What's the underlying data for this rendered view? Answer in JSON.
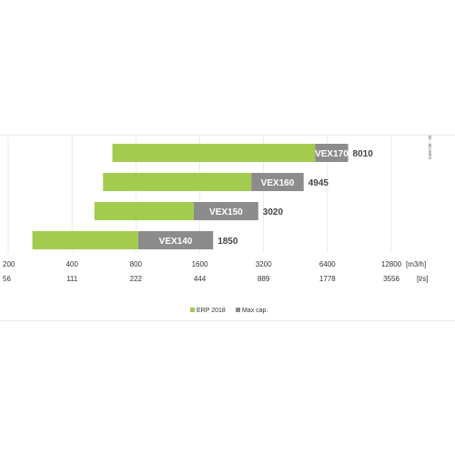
{
  "chart_data": {
    "type": "bar",
    "orientation": "horizontal",
    "scale": "log2",
    "categories": [
      "VEX170",
      "VEX160",
      "VEX150",
      "VEX140"
    ],
    "series": [
      {
        "name": "ERP 2018",
        "color": "#a3cc4e",
        "ranges": [
          [
            620,
            5600
          ],
          [
            560,
            2800
          ],
          [
            510,
            1500
          ],
          [
            260,
            820
          ]
        ]
      },
      {
        "name": "Max cap.",
        "color": "#8c8c8c",
        "ranges": [
          [
            5600,
            8010
          ],
          [
            2800,
            4945
          ],
          [
            1500,
            3020
          ],
          [
            820,
            1850
          ]
        ]
      }
    ],
    "max_labels": [
      "8010",
      "4945",
      "3020",
      "1850"
    ],
    "x_ticks_primary": [
      "200",
      "400",
      "800",
      "1600",
      "3200",
      "6400",
      "12800"
    ],
    "x_ticks_secondary": [
      "56",
      "111",
      "222",
      "444",
      "889",
      "1778",
      "3556"
    ],
    "x_unit_primary": "[m3/h]",
    "x_unit_secondary": "[l/s]",
    "xlim": [
      200,
      12800
    ],
    "grid": true,
    "legend_position": "bottom-center",
    "side_label": "5405738 - 05"
  }
}
